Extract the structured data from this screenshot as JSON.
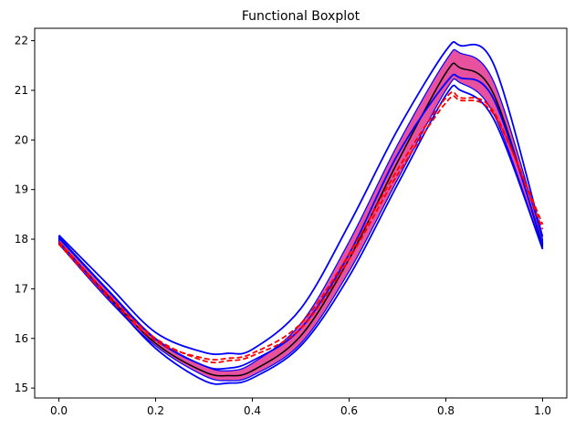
{
  "chart_data": {
    "type": "line",
    "title": "Functional Boxplot",
    "xlabel": "",
    "ylabel": "",
    "xlim": [
      -0.05,
      1.05
    ],
    "ylim": [
      14.8,
      22.25
    ],
    "xticks": [
      0.0,
      0.2,
      0.4,
      0.6,
      0.8,
      1.0
    ],
    "xtick_labels": [
      "0.0",
      "0.2",
      "0.4",
      "0.6",
      "0.8",
      "1.0"
    ],
    "yticks": [
      15,
      16,
      17,
      18,
      19,
      20,
      21,
      22
    ],
    "ytick_labels": [
      "15",
      "16",
      "17",
      "18",
      "19",
      "20",
      "21",
      "22"
    ],
    "grid": false,
    "colors": {
      "band": "#e8519d",
      "whisker": "#0000ff",
      "median": "#000000",
      "outlier": "#ff0000"
    },
    "x": [
      0.0,
      0.1,
      0.2,
      0.3,
      0.35,
      0.4,
      0.5,
      0.6,
      0.7,
      0.8,
      0.83,
      0.9,
      1.0
    ],
    "band": {
      "upper": [
        18.05,
        17.0,
        16.0,
        15.45,
        15.35,
        15.5,
        16.3,
        17.95,
        19.9,
        21.6,
        21.75,
        21.15,
        18.0
      ],
      "lower": [
        17.9,
        16.8,
        15.85,
        15.25,
        15.15,
        15.25,
        15.9,
        17.35,
        19.2,
        21.0,
        21.15,
        20.5,
        17.8
      ]
    },
    "series": [
      {
        "role": "median",
        "values": [
          17.95,
          16.88,
          15.9,
          15.33,
          15.25,
          15.35,
          16.05,
          17.6,
          19.55,
          21.35,
          21.45,
          20.9,
          17.85
        ]
      },
      {
        "role": "whisker",
        "values": [
          18.08,
          17.1,
          16.12,
          15.72,
          15.7,
          15.78,
          16.6,
          18.3,
          20.2,
          21.8,
          21.9,
          21.5,
          18.05
        ]
      },
      {
        "role": "whisker",
        "values": [
          17.95,
          16.85,
          15.8,
          15.15,
          15.1,
          15.2,
          15.85,
          17.25,
          19.1,
          20.9,
          21.0,
          20.4,
          17.8
        ]
      },
      {
        "role": "whisker",
        "values": [
          18.02,
          16.98,
          15.98,
          15.45,
          15.4,
          15.55,
          16.2,
          17.7,
          19.7,
          21.15,
          21.25,
          20.8,
          17.9
        ]
      },
      {
        "role": "outlier",
        "values": [
          17.95,
          16.9,
          16.0,
          15.55,
          15.55,
          15.65,
          16.2,
          17.6,
          19.3,
          20.75,
          20.8,
          20.5,
          18.3
        ]
      },
      {
        "role": "outlier",
        "values": [
          17.9,
          16.85,
          15.95,
          15.6,
          15.6,
          15.7,
          16.3,
          17.7,
          19.4,
          20.85,
          20.85,
          20.55,
          18.2
        ]
      }
    ]
  }
}
